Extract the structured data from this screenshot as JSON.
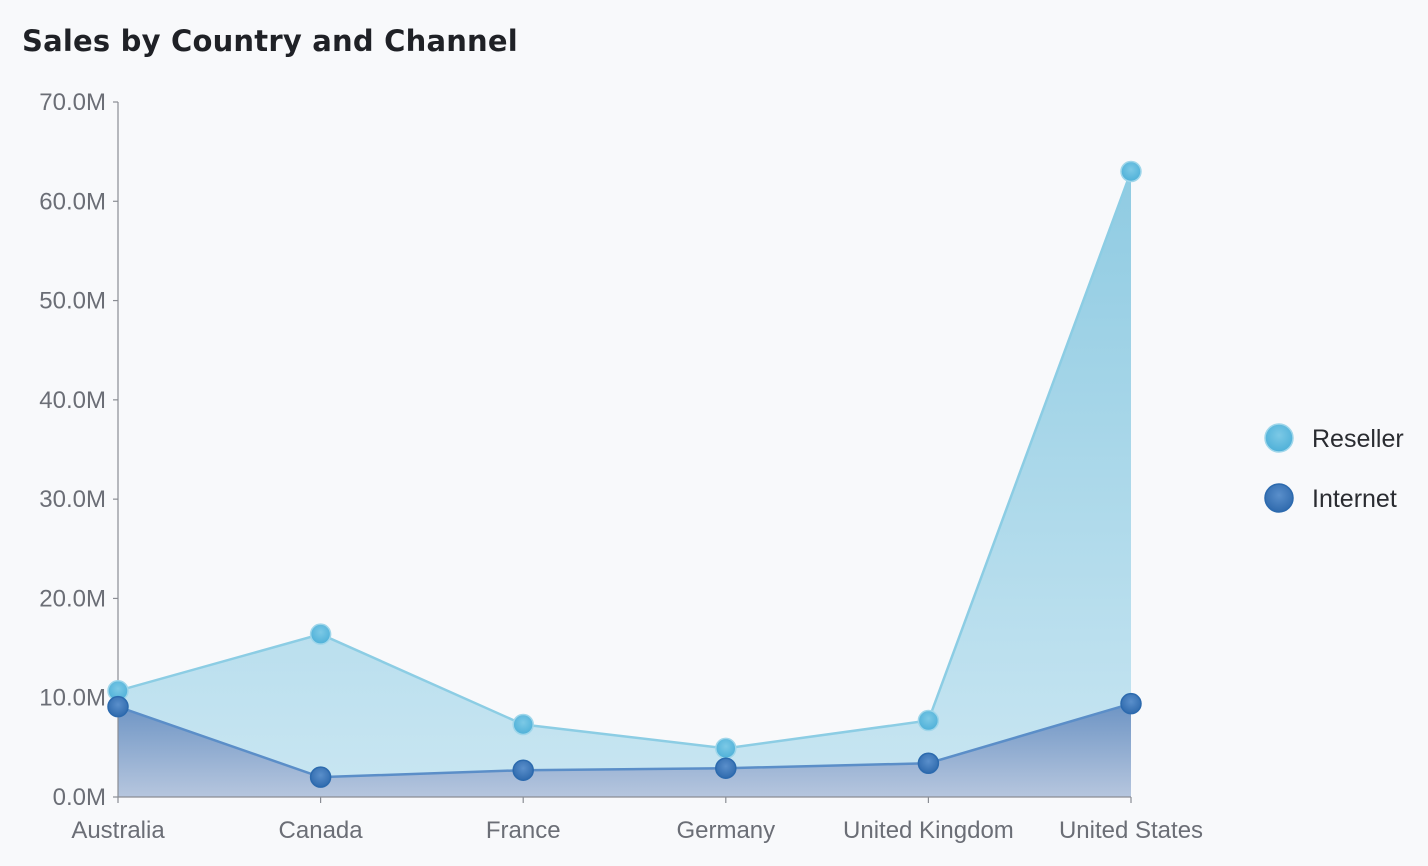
{
  "chart_data": {
    "type": "area",
    "title": "Sales by Country and Channel",
    "xlabel": "",
    "ylabel": "",
    "categories": [
      "Australia",
      "Canada",
      "France",
      "Germany",
      "United Kingdom",
      "United States"
    ],
    "ylim": [
      0,
      70000000
    ],
    "yticks": [
      0,
      10000000,
      20000000,
      30000000,
      40000000,
      50000000,
      60000000,
      70000000
    ],
    "ytick_labels": [
      "0.0M",
      "10.0M",
      "20.0M",
      "30.0M",
      "40.0M",
      "50.0M",
      "60.0M",
      "70.0M"
    ],
    "series": [
      {
        "name": "Reseller",
        "values": [
          10700000,
          16400000,
          7300000,
          4900000,
          7700000,
          63000000
        ],
        "color": "#5bb8dc"
      },
      {
        "name": "Internet",
        "values": [
          9100000,
          2000000,
          2700000,
          2900000,
          3400000,
          9400000
        ],
        "color": "#3b7cbf"
      }
    ],
    "legend_position": "right",
    "grid": false
  }
}
